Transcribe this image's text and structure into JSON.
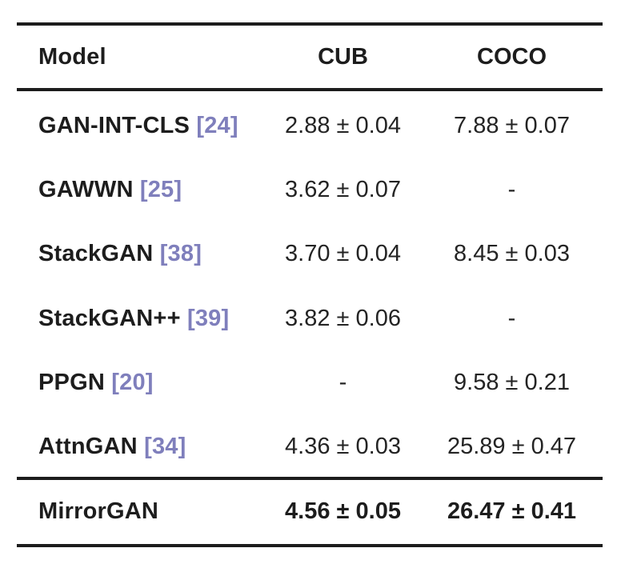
{
  "table": {
    "header": {
      "model": "Model",
      "cub": "CUB",
      "coco": "COCO"
    },
    "rows": [
      {
        "model": "GAN-INT-CLS",
        "cite": "[24]",
        "cub": "2.88 ± 0.04",
        "coco": "7.88 ± 0.07"
      },
      {
        "model": "GAWWN",
        "cite": "[25]",
        "cub": "3.62 ± 0.07",
        "coco": "-"
      },
      {
        "model": "StackGAN",
        "cite": "[38]",
        "cub": "3.70 ± 0.04",
        "coco": "8.45 ± 0.03"
      },
      {
        "model": "StackGAN++",
        "cite": "[39]",
        "cub": "3.82 ± 0.06",
        "coco": "-"
      },
      {
        "model": "PPGN",
        "cite": "[20]",
        "cub": "-",
        "coco": "9.58 ± 0.21"
      },
      {
        "model": "AttnGAN",
        "cite": "[34]",
        "cub": "4.36 ± 0.03",
        "coco": "25.89 ± 0.47"
      }
    ],
    "footer": {
      "model": "MirrorGAN",
      "cub": "4.56 ± 0.05",
      "coco": "26.47 ± 0.41"
    }
  },
  "colors": {
    "citation_link": "#7f7fbc",
    "rule": "#1c1c1c",
    "text": "#1f1f1f",
    "background": "#ffffff"
  }
}
